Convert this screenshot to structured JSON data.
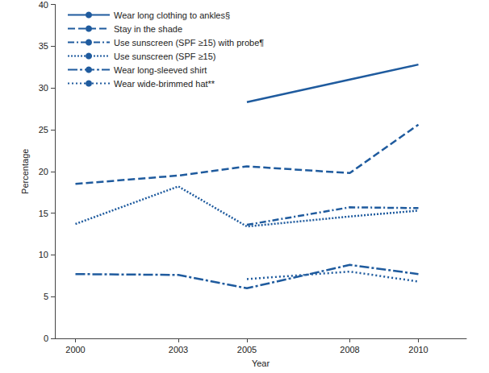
{
  "chart_data": {
    "type": "line",
    "x_label": "Year",
    "y_label": "Percentage",
    "x": [
      2000,
      2003,
      2005,
      2008,
      2010
    ],
    "xlim": [
      1999.4,
      2011.4
    ],
    "xticks": [
      2000,
      2003,
      2005,
      2008,
      2010
    ],
    "ylim": [
      0,
      40
    ],
    "yticks": [
      0,
      5,
      10,
      15,
      20,
      25,
      30,
      35,
      40
    ],
    "grid": false,
    "legend": "upper left",
    "color": "#1f5b9e",
    "series": [
      {
        "name": "Wear long clothing to ankles§",
        "line_style": "solid",
        "values": [
          null,
          null,
          28.3,
          31.0,
          32.8
        ]
      },
      {
        "name": "Stay in the shade",
        "line_style": "dashed",
        "values": [
          18.5,
          19.5,
          20.6,
          19.8,
          25.6
        ]
      },
      {
        "name": "Use sunscreen (SPF ≥15) with probe¶",
        "line_style": "dash_dot",
        "values": [
          null,
          null,
          13.6,
          15.7,
          15.6
        ]
      },
      {
        "name": "Use sunscreen (SPF ≥15)",
        "line_style": "dotted",
        "values": [
          13.7,
          18.2,
          13.4,
          14.6,
          15.3
        ]
      },
      {
        "name": "Wear long-sleeved shirt",
        "line_style": "long_dash_dot",
        "values": [
          7.7,
          7.6,
          6.0,
          8.8,
          7.7
        ]
      },
      {
        "name": "Wear wide-brimmed hat**",
        "line_style": "loosely_dotted",
        "values": [
          null,
          null,
          7.1,
          8.0,
          6.8
        ]
      }
    ]
  }
}
